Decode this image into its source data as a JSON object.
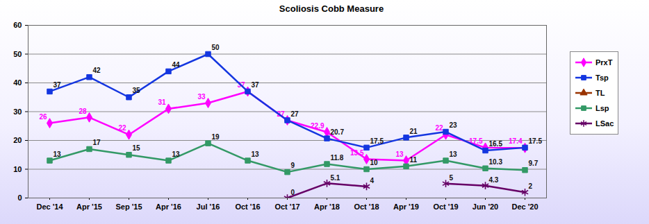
{
  "chart_data": {
    "type": "line",
    "title": "Scoliosis Cobb Measure",
    "categories": [
      "Dec '14",
      "Apr '15",
      "Sep '15",
      "Apr '16",
      "Jul '16",
      "Oct '16",
      "Oct '17",
      "Apr '18",
      "Oct '18",
      "Apr '19",
      "Oct '19",
      "Jun '20",
      "Dec '20"
    ],
    "series": [
      {
        "name": "PrxT",
        "color": "#ff00ff",
        "marker": "diamond",
        "values": [
          26,
          28,
          22,
          31,
          33,
          37,
          27,
          22.9,
          13.5,
          13,
          22,
          17.5,
          17.4
        ]
      },
      {
        "name": "Tsp",
        "color": "#1436e0",
        "marker": "square",
        "values": [
          37,
          42,
          35,
          44,
          50,
          37,
          27,
          20.7,
          17.5,
          21,
          23,
          16.5,
          17.5
        ]
      },
      {
        "name": "TL",
        "color": "#993300",
        "marker": "triangle",
        "values": [
          null,
          null,
          null,
          null,
          null,
          null,
          null,
          null,
          null,
          null,
          null,
          null,
          null
        ]
      },
      {
        "name": "Lsp",
        "color": "#339966",
        "marker": "square",
        "values": [
          13,
          17,
          15,
          13,
          19,
          13,
          9,
          11.8,
          10,
          11,
          13,
          10.3,
          9.7
        ]
      },
      {
        "name": "LSac",
        "color": "#660066",
        "marker": "asterisk",
        "values": [
          null,
          null,
          null,
          null,
          null,
          null,
          0,
          5.1,
          4,
          null,
          5,
          4.3,
          2
        ]
      }
    ],
    "ylim": [
      0,
      60
    ],
    "yticks": [
      0,
      10,
      20,
      30,
      40,
      50,
      60
    ],
    "grid": true,
    "legend": "right",
    "data_labels": true
  }
}
